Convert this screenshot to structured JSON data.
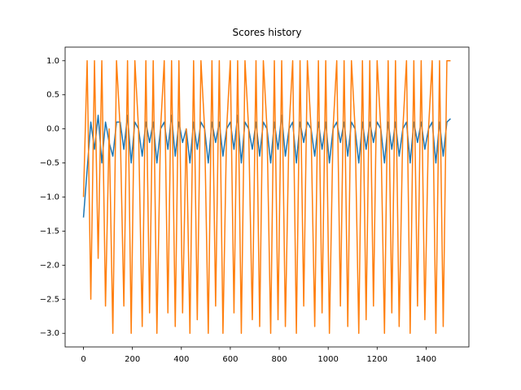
{
  "chart_data": {
    "type": "line",
    "title": "Scores history",
    "x": [
      0,
      15,
      30,
      45,
      60,
      75,
      90,
      105,
      120,
      135,
      150,
      165,
      180,
      195,
      210,
      225,
      240,
      255,
      270,
      285,
      300,
      315,
      330,
      345,
      360,
      375,
      390,
      405,
      420,
      435,
      450,
      465,
      480,
      495,
      510,
      525,
      540,
      555,
      570,
      585,
      600,
      615,
      630,
      645,
      660,
      675,
      690,
      705,
      720,
      735,
      750,
      765,
      780,
      795,
      810,
      825,
      840,
      855,
      870,
      885,
      900,
      915,
      930,
      945,
      960,
      975,
      990,
      1005,
      1020,
      1035,
      1050,
      1065,
      1080,
      1095,
      1110,
      1125,
      1140,
      1155,
      1170,
      1185,
      1200,
      1215,
      1230,
      1245,
      1260,
      1275,
      1290,
      1305,
      1320,
      1335,
      1350,
      1365,
      1380,
      1395,
      1410,
      1425,
      1440,
      1455,
      1470,
      1485,
      1500
    ],
    "series": [
      {
        "color": "#1f77b4",
        "values": [
          -1.3,
          -0.6,
          0.1,
          -0.3,
          0.2,
          -0.5,
          0.1,
          -0.2,
          -0.4,
          0.1,
          0.1,
          -0.3,
          0.2,
          -0.5,
          0.1,
          0,
          -0.4,
          0.1,
          -0.2,
          0.1,
          -0.5,
          0,
          0.1,
          -0.3,
          0.2,
          -0.4,
          0.1,
          -0.2,
          0,
          -0.5,
          0.1,
          -0.3,
          0.1,
          0,
          -0.5,
          0.1,
          -0.2,
          0.1,
          -0.4,
          0,
          0.1,
          -0.3,
          0.2,
          -0.5,
          0.1,
          0,
          -0.3,
          0.1,
          -0.4,
          0.1,
          0,
          -0.5,
          0.1,
          -0.3,
          0.2,
          -0.4,
          0,
          0.1,
          -0.5,
          0.1,
          -0.2,
          0.1,
          0,
          -0.4,
          0.1,
          -0.3,
          0.1,
          -0.5,
          0,
          0.1,
          -0.2,
          0.1,
          -0.4,
          0.1,
          0,
          -0.5,
          0.1,
          -0.3,
          0.1,
          -0.2,
          0.1,
          0,
          -0.5,
          0.1,
          -0.3,
          0.1,
          -0.4,
          0,
          0.1,
          -0.5,
          0.1,
          -0.2,
          0.1,
          -0.3,
          0,
          0.1,
          -0.5,
          0.1,
          -0.4,
          0.1,
          0.15
        ]
      },
      {
        "color": "#ff7f0e",
        "values": [
          -1.0,
          1,
          -2.5,
          1,
          -1.9,
          1,
          -2.6,
          0,
          -3,
          1,
          0,
          -2.6,
          1,
          -3,
          1,
          0,
          -2.9,
          1,
          -2.7,
          1,
          -3,
          0,
          1,
          -2.7,
          1,
          -2.9,
          1,
          -2.7,
          0,
          -3,
          1,
          -2.8,
          1,
          0,
          -3,
          1,
          -2.6,
          1,
          -3,
          0,
          1,
          -2.7,
          1,
          -3,
          1,
          0,
          -2.8,
          1,
          -2.9,
          1,
          0,
          -3,
          1,
          -2.8,
          1,
          -2.9,
          0,
          1,
          -3,
          1,
          -2.6,
          1,
          0,
          -2.9,
          1,
          -2.7,
          1,
          -3,
          0,
          1,
          -2.6,
          1,
          -2.9,
          1,
          0,
          -3,
          1,
          -2.8,
          1,
          -2.6,
          1,
          0,
          -3,
          1,
          -2.7,
          1,
          -2.9,
          0,
          1,
          -3,
          1,
          -2.6,
          1,
          -2.8,
          0,
          1,
          -3,
          1,
          -2.9,
          1,
          1
        ]
      }
    ],
    "xlim": [
      -75,
      1575
    ],
    "ylim": [
      -3.2,
      1.2
    ],
    "xticks": [
      0,
      200,
      400,
      600,
      800,
      1000,
      1200,
      1400
    ],
    "yticks": [
      {
        "value": -3,
        "label": "−3.0"
      },
      {
        "value": -2.5,
        "label": "−2.5"
      },
      {
        "value": -2,
        "label": "−2.0"
      },
      {
        "value": -1.5,
        "label": "−1.5"
      },
      {
        "value": -1,
        "label": "−1.0"
      },
      {
        "value": -0.5,
        "label": "−0.5"
      },
      {
        "value": 0,
        "label": "0.0"
      },
      {
        "value": 0.5,
        "label": "0.5"
      },
      {
        "value": 1,
        "label": "1.0"
      }
    ]
  }
}
